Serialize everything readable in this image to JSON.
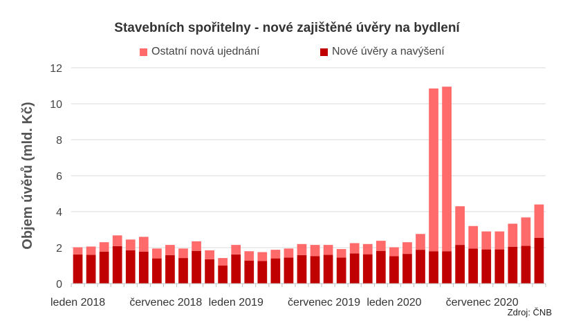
{
  "chart_data": {
    "type": "bar",
    "stacked": true,
    "title": "Stavebních spořitelny - nové zajištěné úvěry na bydlení",
    "ylabel": "Objem úvěrů (mld. Kč)",
    "xlabel": "",
    "ylim": [
      0,
      12
    ],
    "yticks": [
      0,
      2,
      4,
      6,
      8,
      10,
      12
    ],
    "grid": true,
    "legend_position": "top",
    "x_tick_labels": [
      "leden 2018",
      "červenec 2018",
      "leden 2019",
      "červenec 2019",
      "leden 2020",
      "červenec 2020"
    ],
    "x_tick_indices": [
      0,
      6,
      12,
      18,
      24,
      30
    ],
    "n_months": 36,
    "series": [
      {
        "name": "Nové úvěry a navýšení",
        "color": "#c00000",
        "values": [
          1.62,
          1.6,
          1.78,
          2.08,
          1.85,
          1.77,
          1.4,
          1.58,
          1.42,
          1.82,
          1.35,
          1.0,
          1.62,
          1.28,
          1.25,
          1.4,
          1.45,
          1.58,
          1.53,
          1.6,
          1.45,
          1.68,
          1.63,
          1.82,
          1.52,
          1.65,
          1.88,
          1.8,
          1.8,
          2.15,
          1.95,
          1.9,
          1.9,
          2.05,
          2.1,
          2.55
        ]
      },
      {
        "name": "Ostatní nová ujednání",
        "color": "#ff6b6b",
        "values": [
          0.4,
          0.46,
          0.52,
          0.6,
          0.6,
          0.83,
          0.55,
          0.57,
          0.53,
          0.53,
          0.5,
          0.42,
          0.53,
          0.52,
          0.5,
          0.48,
          0.5,
          0.62,
          0.62,
          0.55,
          0.47,
          0.57,
          0.57,
          0.56,
          0.5,
          0.65,
          0.88,
          9.05,
          9.15,
          2.15,
          1.25,
          1.0,
          1.0,
          1.28,
          1.58,
          1.85
        ]
      }
    ]
  },
  "legend": {
    "items": [
      {
        "label": "Ostatní nová ujednání",
        "color": "#ff6b6b"
      },
      {
        "label": "Nové úvěry a navýšení",
        "color": "#c00000"
      }
    ]
  },
  "source": "Zdroj: ČNB"
}
